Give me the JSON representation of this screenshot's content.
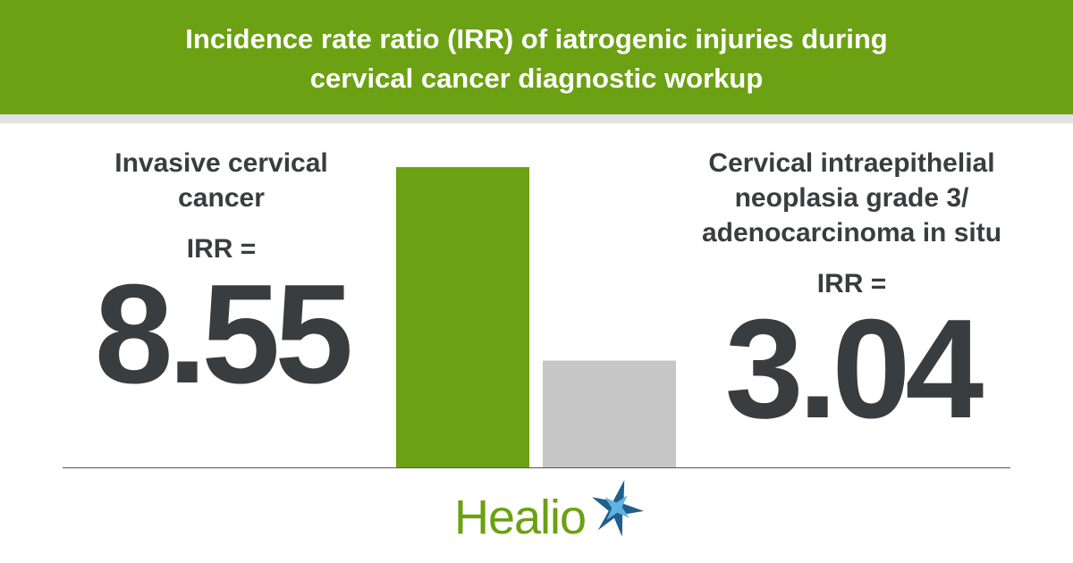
{
  "chart_data": {
    "type": "bar",
    "title": "Incidence rate ratio (IRR) of iatrogenic injuries during cervical cancer diagnostic workup",
    "categories": [
      "Invasive cervical cancer",
      "Cervical intraepithelial neoplasia grade 3/ adenocarcinoma in situ"
    ],
    "value_prefix": "IRR =",
    "values": [
      8.55,
      3.04
    ],
    "colors": [
      "#6ba112",
      "#c6c6c6"
    ]
  },
  "brand": "Healio"
}
